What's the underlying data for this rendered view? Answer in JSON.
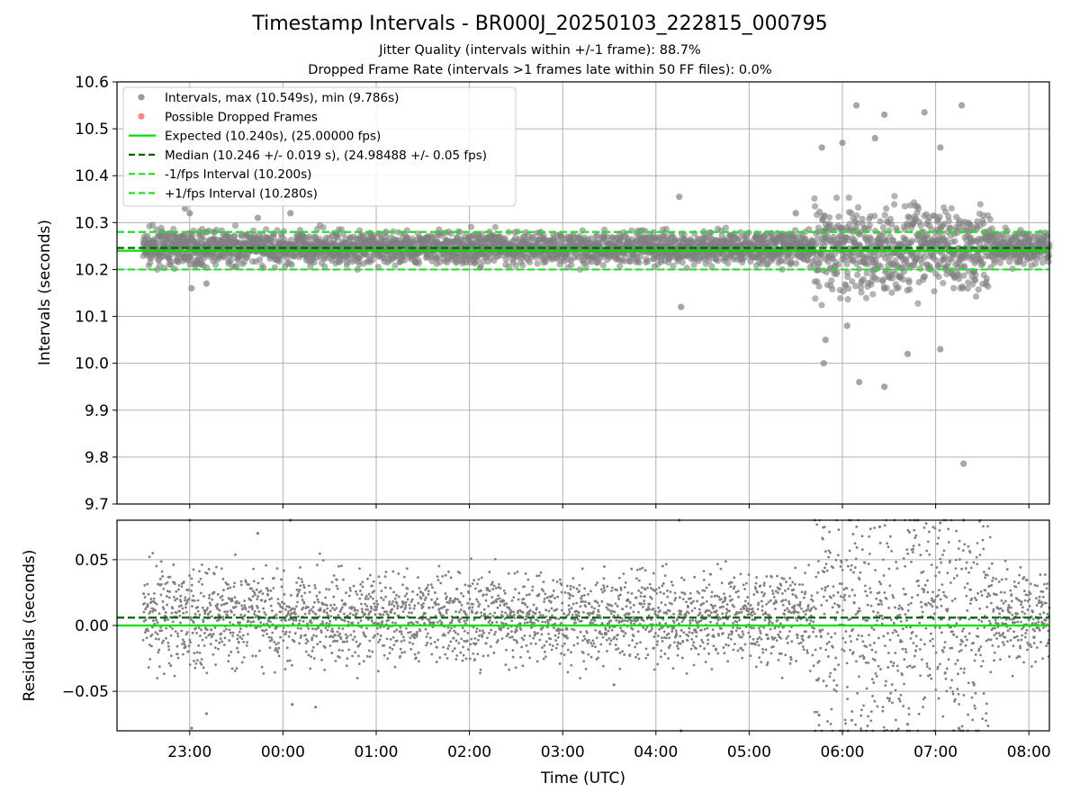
{
  "colors": {
    "points": "#808080",
    "dropped": "#ff6666",
    "expected": "#00e000",
    "median": "#006400",
    "interval": "#22e022",
    "grid": "#b0b0b0"
  },
  "chart_data": [
    {
      "type": "scatter",
      "title": "Timestamp Intervals - BR000J_20250103_222815_000795",
      "subtitle_1": "Jitter Quality (intervals within +/-1 frame): 88.7%",
      "subtitle_2": "Dropped Frame Rate (intervals >1 frames late within 50 FF files): 0.0%",
      "ylabel": "Intervals (seconds)",
      "ylim": [
        9.7,
        10.6
      ],
      "xlim_hours": [
        -1.78,
        8.22
      ],
      "y_ticks": [
        "10.6",
        "10.5",
        "10.4",
        "10.3",
        "10.2",
        "10.1",
        "10.0",
        "9.9",
        "9.8",
        "9.7"
      ],
      "y_tick_values": [
        10.6,
        10.5,
        10.4,
        10.3,
        10.2,
        10.1,
        10.0,
        9.9,
        9.8,
        9.7
      ],
      "grid": true,
      "legend_position": "top-left",
      "legend": [
        "Intervals, max (10.549s), min (9.786s)",
        "Possible Dropped Frames",
        "Expected (10.240s), (25.00000 fps)",
        "Median (10.246 +/- 0.019 s), (24.98488 +/- 0.05 fps)",
        "-1/fps Interval (10.200s)",
        "+1/fps Interval (10.280s)"
      ],
      "reference_lines": {
        "expected": 10.24,
        "median": 10.246,
        "minus_1fps": 10.2,
        "plus_1fps": 10.28
      },
      "series": [
        {
          "name": "Intervals",
          "x_start_hours": -1.5,
          "x_end_hours": 8.22,
          "interval_s": 10.24,
          "typical_range": [
            10.21,
            10.29
          ],
          "max": 10.549,
          "min": 9.786,
          "outliers": [
            {
              "x": -1.05,
              "y": 10.33
            },
            {
              "x": -1.0,
              "y": 10.32
            },
            {
              "x": -0.98,
              "y": 10.16
            },
            {
              "x": -0.82,
              "y": 10.17
            },
            {
              "x": -0.27,
              "y": 10.31
            },
            {
              "x": 0.08,
              "y": 10.32
            },
            {
              "x": 4.25,
              "y": 10.355
            },
            {
              "x": 4.27,
              "y": 10.12
            },
            {
              "x": 5.5,
              "y": 10.32
            },
            {
              "x": 5.78,
              "y": 10.46
            },
            {
              "x": 5.8,
              "y": 10.0
            },
            {
              "x": 5.82,
              "y": 10.05
            },
            {
              "x": 6.0,
              "y": 10.47
            },
            {
              "x": 6.05,
              "y": 10.08
            },
            {
              "x": 6.15,
              "y": 10.55
            },
            {
              "x": 6.18,
              "y": 9.96
            },
            {
              "x": 6.35,
              "y": 10.48
            },
            {
              "x": 6.45,
              "y": 10.53
            },
            {
              "x": 6.45,
              "y": 9.95
            },
            {
              "x": 6.7,
              "y": 10.02
            },
            {
              "x": 6.88,
              "y": 10.535
            },
            {
              "x": 7.05,
              "y": 10.46
            },
            {
              "x": 7.05,
              "y": 10.03
            },
            {
              "x": 7.28,
              "y": 10.55
            },
            {
              "x": 7.3,
              "y": 9.786
            }
          ]
        },
        {
          "name": "Possible Dropped Frames",
          "values": []
        }
      ]
    },
    {
      "type": "scatter",
      "ylabel": "Residuals (seconds)",
      "xlabel": "Time (UTC)",
      "ylim": [
        -0.08,
        0.08
      ],
      "y_ticks": [
        "0.05",
        "0.00",
        "−0.05"
      ],
      "y_tick_values": [
        0.05,
        0.0,
        -0.05
      ],
      "x_ticks": [
        "23:00",
        "00:00",
        "01:00",
        "02:00",
        "03:00",
        "04:00",
        "05:00",
        "06:00",
        "07:00",
        "08:00"
      ],
      "x_tick_hours": [
        -1,
        0,
        1,
        2,
        3,
        4,
        5,
        6,
        7,
        8
      ],
      "grid": true,
      "reference_lines": {
        "zero": 0.0,
        "median_offset": 0.006
      },
      "series": [
        {
          "name": "Residuals",
          "typical_range": [
            -0.03,
            0.045
          ],
          "outliers": [
            {
              "x": -1.0,
              "y": 0.08
            },
            {
              "x": -0.98,
              "y": -0.078
            },
            {
              "x": -0.82,
              "y": -0.067
            },
            {
              "x": -0.27,
              "y": 0.07
            },
            {
              "x": 0.08,
              "y": 0.08
            },
            {
              "x": 0.1,
              "y": -0.06
            },
            {
              "x": 0.35,
              "y": -0.062
            },
            {
              "x": 3.55,
              "y": -0.045
            },
            {
              "x": 4.25,
              "y": 0.08
            },
            {
              "x": 4.27,
              "y": -0.08
            },
            {
              "x": 5.75,
              "y": -0.068
            },
            {
              "x": 6.1,
              "y": -0.072
            },
            {
              "x": 6.4,
              "y": 0.075
            },
            {
              "x": 6.7,
              "y": -0.075
            },
            {
              "x": 7.05,
              "y": 0.078
            },
            {
              "x": 7.25,
              "y": -0.078
            },
            {
              "x": 7.3,
              "y": 0.08
            }
          ]
        }
      ]
    }
  ]
}
